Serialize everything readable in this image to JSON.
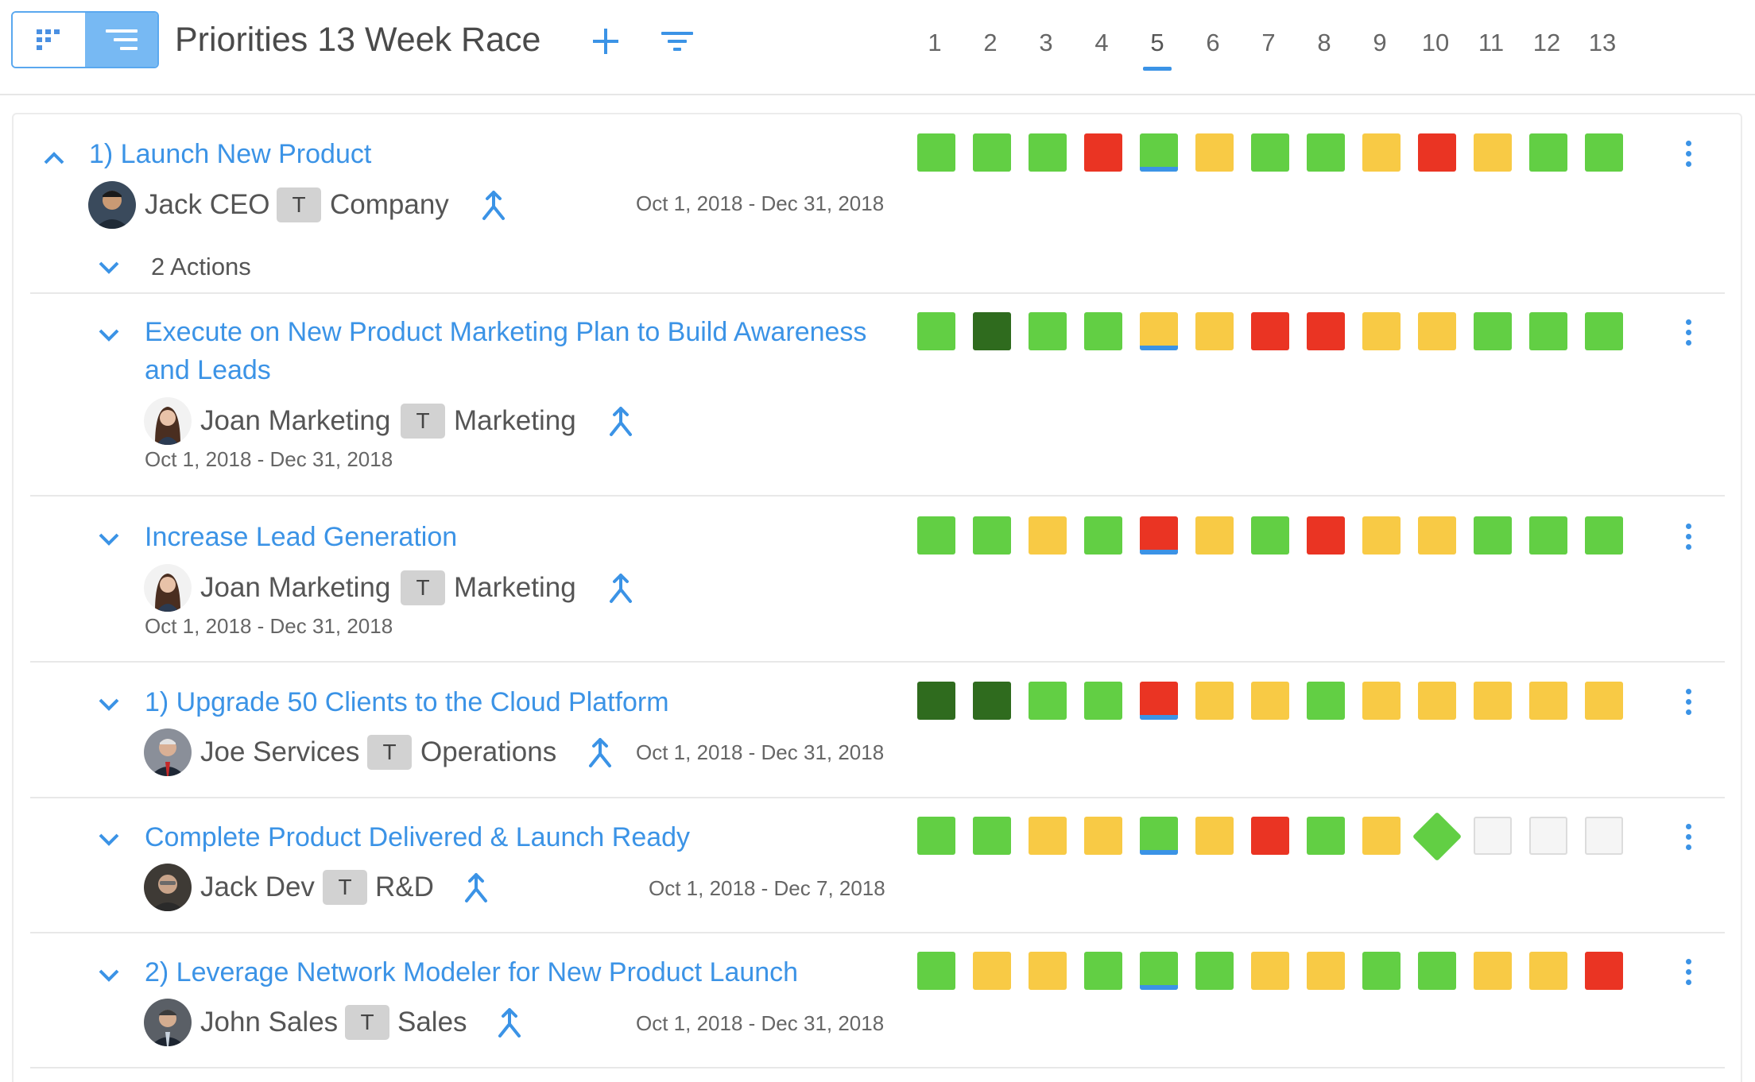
{
  "header": {
    "title": "Priorities 13 Week Race",
    "view_toggle": [
      "grid-view-icon",
      "list-view-icon"
    ],
    "active_view": "list",
    "add_icon": "plus-icon",
    "filter_icon": "filter-icon",
    "weeks": [
      "1",
      "2",
      "3",
      "4",
      "5",
      "6",
      "7",
      "8",
      "9",
      "10",
      "11",
      "12",
      "13"
    ],
    "current_week": "5"
  },
  "colors": {
    "green": "#62cf44",
    "dark_green": "#2f6b1e",
    "yellow": "#f8ca45",
    "red": "#ea3423",
    "empty": "#f5f5f5",
    "accent": "#3b93e6"
  },
  "priority": {
    "title": "1) Launch New Product",
    "owner": "Jack CEO",
    "badge": "T",
    "team": "Company",
    "dates": "Oct 1, 2018 - Dec 31, 2018",
    "actions_label": "2 Actions",
    "statuses": [
      "green",
      "green",
      "green",
      "red",
      "green",
      "yellow",
      "green",
      "green",
      "yellow",
      "red",
      "yellow",
      "green",
      "green"
    ]
  },
  "items": [
    {
      "title": "Execute on New Product Marketing Plan to Build Awareness and Leads",
      "owner": "Joan Marketing",
      "badge": "T",
      "team": "Marketing",
      "dates": "Oct 1, 2018 - Dec 31, 2018",
      "statuses": [
        "green",
        "dark_green",
        "green",
        "green",
        "yellow",
        "yellow",
        "red",
        "red",
        "yellow",
        "yellow",
        "green",
        "green",
        "green"
      ]
    },
    {
      "title": "Increase Lead Generation",
      "owner": "Joan Marketing",
      "badge": "T",
      "team": "Marketing",
      "dates": "Oct 1, 2018 - Dec 31, 2018",
      "statuses": [
        "green",
        "green",
        "yellow",
        "green",
        "red",
        "yellow",
        "green",
        "red",
        "yellow",
        "yellow",
        "green",
        "green",
        "green"
      ]
    },
    {
      "title": "1) Upgrade 50 Clients to the Cloud Platform",
      "owner": "Joe Services",
      "badge": "T",
      "team": "Operations",
      "dates": "Oct 1, 2018 - Dec 31, 2018",
      "statuses": [
        "dark_green",
        "dark_green",
        "green",
        "green",
        "red",
        "yellow",
        "yellow",
        "green",
        "yellow",
        "yellow",
        "yellow",
        "yellow",
        "yellow"
      ]
    },
    {
      "title": "Complete Product Delivered & Launch Ready",
      "owner": "Jack Dev",
      "badge": "T",
      "team": "R&D",
      "dates": "Oct 1, 2018 - Dec 7, 2018",
      "statuses": [
        "green",
        "green",
        "yellow",
        "yellow",
        "green",
        "yellow",
        "red",
        "green",
        "yellow",
        "diamond_green",
        "empty",
        "empty",
        "empty"
      ]
    },
    {
      "title": "2) Leverage Network Modeler for New Product Launch",
      "owner": "John Sales",
      "badge": "T",
      "team": "Sales",
      "dates": "Oct 1, 2018 - Dec 31, 2018",
      "statuses": [
        "green",
        "yellow",
        "yellow",
        "green",
        "green",
        "green",
        "yellow",
        "yellow",
        "green",
        "green",
        "yellow",
        "yellow",
        "red"
      ]
    }
  ]
}
